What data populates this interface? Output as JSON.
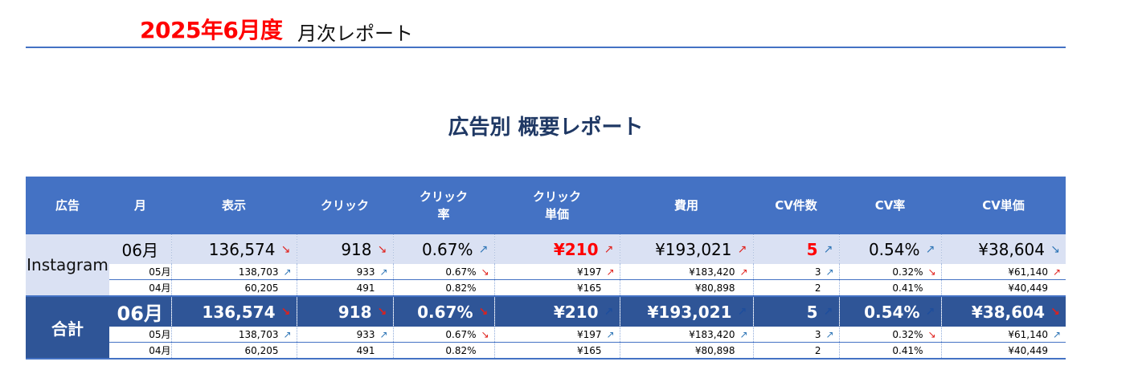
{
  "header": {
    "year_month": "2025年6月度",
    "subtitle": "月次レポート"
  },
  "report_title": "広告別 概要レポート",
  "columns": [
    "広告",
    "月",
    "表示",
    "クリック",
    "クリック\n率",
    "クリック\n単価",
    "費用",
    "CV件数",
    "CV率",
    "CV単価"
  ],
  "groups": [
    {
      "label": "Instagram",
      "rows": [
        {
          "month": "06月",
          "kind": "main",
          "cells": [
            {
              "v": "136,574",
              "a": "↘",
              "d": "down"
            },
            {
              "v": "918",
              "a": "↘",
              "d": "down"
            },
            {
              "v": "0.67%",
              "a": "↗",
              "d": "up"
            },
            {
              "v": "¥210",
              "a": "↗",
              "d": "upred",
              "hl": true
            },
            {
              "v": "¥193,021",
              "a": "↗",
              "d": "upred"
            },
            {
              "v": "5",
              "a": "↗",
              "d": "up",
              "hl": true
            },
            {
              "v": "0.54%",
              "a": "↗",
              "d": "up"
            },
            {
              "v": "¥38,604",
              "a": "↘",
              "d": "up"
            }
          ]
        },
        {
          "month": "05月",
          "kind": "sub",
          "cells": [
            {
              "v": "138,703",
              "a": "↗",
              "d": "up"
            },
            {
              "v": "933",
              "a": "↗",
              "d": "up"
            },
            {
              "v": "0.67%",
              "a": "↘",
              "d": "down"
            },
            {
              "v": "¥197",
              "a": "↗",
              "d": "upred"
            },
            {
              "v": "¥183,420",
              "a": "↗",
              "d": "upred"
            },
            {
              "v": "3",
              "a": "↗",
              "d": "up"
            },
            {
              "v": "0.32%",
              "a": "↘",
              "d": "down"
            },
            {
              "v": "¥61,140",
              "a": "↗",
              "d": "upred"
            }
          ]
        },
        {
          "month": "04月",
          "kind": "sub",
          "cells": [
            {
              "v": "60,205",
              "a": "",
              "d": "none"
            },
            {
              "v": "491",
              "a": "",
              "d": "none"
            },
            {
              "v": "0.82%",
              "a": "",
              "d": "none"
            },
            {
              "v": "¥165",
              "a": "",
              "d": "none"
            },
            {
              "v": "¥80,898",
              "a": "",
              "d": "none"
            },
            {
              "v": "2",
              "a": "",
              "d": "none"
            },
            {
              "v": "0.41%",
              "a": "",
              "d": "none"
            },
            {
              "v": "¥40,449",
              "a": "",
              "d": "none"
            }
          ]
        }
      ]
    },
    {
      "label": "合計",
      "rows": [
        {
          "month": "06月",
          "kind": "total",
          "cells": [
            {
              "v": "136,574",
              "a": "↘",
              "d": "down"
            },
            {
              "v": "918",
              "a": "↘",
              "d": "down"
            },
            {
              "v": "0.67%",
              "a": "↘",
              "d": "down"
            },
            {
              "v": "¥210",
              "a": "↗",
              "d": "up"
            },
            {
              "v": "¥193,021",
              "a": "↗",
              "d": "up"
            },
            {
              "v": "5",
              "a": "↗",
              "d": "up"
            },
            {
              "v": "0.54%",
              "a": "↗",
              "d": "up"
            },
            {
              "v": "¥38,604",
              "a": "↘",
              "d": "down"
            }
          ]
        },
        {
          "month": "05月",
          "kind": "sub",
          "cells": [
            {
              "v": "138,703",
              "a": "↗",
              "d": "up"
            },
            {
              "v": "933",
              "a": "↗",
              "d": "up"
            },
            {
              "v": "0.67%",
              "a": "↘",
              "d": "down"
            },
            {
              "v": "¥197",
              "a": "↗",
              "d": "up"
            },
            {
              "v": "¥183,420",
              "a": "↗",
              "d": "up"
            },
            {
              "v": "3",
              "a": "↗",
              "d": "up"
            },
            {
              "v": "0.32%",
              "a": "↘",
              "d": "down"
            },
            {
              "v": "¥61,140",
              "a": "↗",
              "d": "up"
            }
          ]
        },
        {
          "month": "04月",
          "kind": "sub",
          "cells": [
            {
              "v": "60,205",
              "a": "",
              "d": "none"
            },
            {
              "v": "491",
              "a": "",
              "d": "none"
            },
            {
              "v": "0.82%",
              "a": "",
              "d": "none"
            },
            {
              "v": "¥165",
              "a": "",
              "d": "none"
            },
            {
              "v": "¥80,898",
              "a": "",
              "d": "none"
            },
            {
              "v": "2",
              "a": "",
              "d": "none"
            },
            {
              "v": "0.41%",
              "a": "",
              "d": "none"
            },
            {
              "v": "¥40,449",
              "a": "",
              "d": "none"
            }
          ]
        }
      ]
    }
  ]
}
